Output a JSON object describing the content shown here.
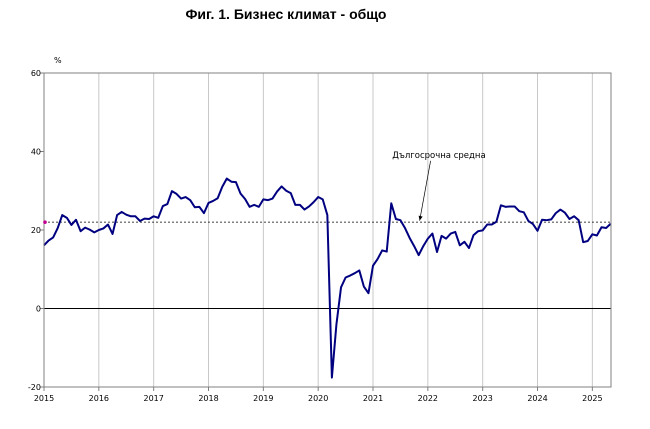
{
  "chart_data": {
    "type": "line",
    "title": "Фиг. 1. Бизнес климат - общо",
    "ylabel": "%",
    "ylim": [
      -20,
      60
    ],
    "yticks": [
      -20,
      0,
      20,
      40,
      60
    ],
    "xlim": [
      2015,
      2025.34
    ],
    "xticks": [
      2015,
      2016,
      2017,
      2018,
      2019,
      2020,
      2021,
      2022,
      2023,
      2024,
      2025
    ],
    "grid": "vertical",
    "colors": {
      "series": "#000080",
      "average": "#000000",
      "marker": "#c00090"
    },
    "series": [
      {
        "x": [
          2015.0,
          2015.083,
          2015.167,
          2015.25,
          2015.333,
          2015.417,
          2015.5,
          2015.583,
          2015.667,
          2015.75,
          2015.833,
          2015.917,
          2016.0,
          2016.083,
          2016.167,
          2016.25,
          2016.333,
          2016.417,
          2016.5,
          2016.583,
          2016.667,
          2016.75,
          2016.833,
          2016.917,
          2017.0,
          2017.083,
          2017.167,
          2017.25,
          2017.333,
          2017.417,
          2017.5,
          2017.583,
          2017.667,
          2017.75,
          2017.833,
          2017.917,
          2018.0,
          2018.083,
          2018.167,
          2018.25,
          2018.333,
          2018.417,
          2018.5,
          2018.583,
          2018.667,
          2018.75,
          2018.833,
          2018.917,
          2019.0,
          2019.083,
          2019.167,
          2019.25,
          2019.333,
          2019.417,
          2019.5,
          2019.583,
          2019.667,
          2019.75,
          2019.833,
          2019.917,
          2020.0,
          2020.083,
          2020.167,
          2020.25,
          2020.333,
          2020.417,
          2020.5,
          2020.583,
          2020.667,
          2020.75,
          2020.833,
          2020.917,
          2021.0,
          2021.083,
          2021.167,
          2021.25,
          2021.333,
          2021.417,
          2021.5,
          2021.583,
          2021.667,
          2021.75,
          2021.833,
          2021.917,
          2022.0,
          2022.083,
          2022.167,
          2022.25,
          2022.333,
          2022.417,
          2022.5,
          2022.583,
          2022.667,
          2022.75,
          2022.833,
          2022.917,
          2023.0,
          2023.083,
          2023.167,
          2023.25,
          2023.333,
          2023.417,
          2023.5,
          2023.583,
          2023.667,
          2023.75,
          2023.833,
          2023.917,
          2024.0,
          2024.083,
          2024.167,
          2024.25,
          2024.333,
          2024.417,
          2024.5,
          2024.583,
          2024.667,
          2024.75,
          2024.833,
          2024.917,
          2025.0,
          2025.083,
          2025.167,
          2025.25,
          2025.333
        ],
        "values": [
          16.1,
          17.3,
          18.1,
          20.5,
          23.8,
          23.1,
          21.3,
          22.6,
          19.7,
          20.6,
          20.1,
          19.4,
          20.0,
          20.4,
          21.4,
          19.0,
          23.8,
          24.6,
          23.9,
          23.5,
          23.5,
          22.3,
          22.9,
          22.8,
          23.5,
          23.1,
          26.1,
          26.6,
          29.9,
          29.2,
          28.0,
          28.4,
          27.6,
          25.8,
          25.9,
          24.3,
          26.9,
          27.4,
          28.1,
          31.0,
          33.1,
          32.3,
          32.2,
          29.3,
          27.9,
          25.9,
          26.4,
          25.9,
          27.8,
          27.6,
          28.0,
          29.8,
          31.1,
          30.0,
          29.4,
          26.4,
          26.4,
          25.2,
          26.0,
          27.1,
          28.4,
          27.8,
          23.8,
          -17.6,
          -4.0,
          5.4,
          7.9,
          8.4,
          9.0,
          9.7,
          5.6,
          3.9,
          10.9,
          12.6,
          14.8,
          14.5,
          26.8,
          22.8,
          22.5,
          20.5,
          18.0,
          15.9,
          13.6,
          15.9,
          17.8,
          19.1,
          14.4,
          18.5,
          17.8,
          19.1,
          19.5,
          16.1,
          17.0,
          15.4,
          18.7,
          19.7,
          19.9,
          21.4,
          21.4,
          22.1,
          26.3,
          25.9,
          26.0,
          26.0,
          24.8,
          24.5,
          22.3,
          21.5,
          19.8,
          22.6,
          22.5,
          22.7,
          24.3,
          25.2,
          24.4,
          22.8,
          23.5,
          22.5,
          16.9,
          17.2,
          18.9,
          18.6,
          20.7,
          20.5,
          21.6
        ]
      }
    ],
    "average": {
      "value": 22.0,
      "label": "Дългосрочна средна"
    }
  }
}
